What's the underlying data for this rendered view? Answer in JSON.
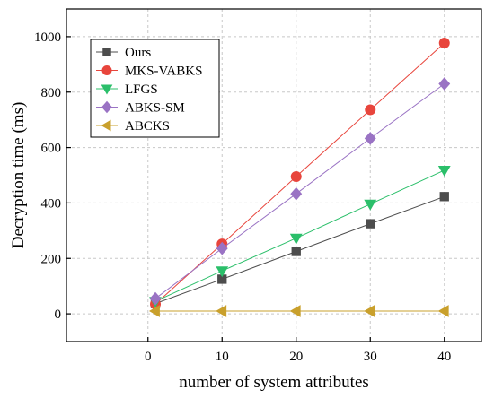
{
  "chart_data": {
    "type": "line",
    "title": "",
    "xlabel": "number of system attributes",
    "ylabel": "Decryption  time (ms)",
    "xlim": [
      -11,
      45
    ],
    "ylim": [
      -100,
      1100
    ],
    "xticks": [
      0,
      10,
      20,
      30,
      40
    ],
    "yticks": [
      0,
      200,
      400,
      600,
      800,
      1000
    ],
    "grid": true,
    "legend_position": "top-left",
    "series": [
      {
        "name": "Ours",
        "color": "#4d4d4d",
        "marker": "square",
        "x": [
          1,
          10,
          20,
          30,
          40
        ],
        "y": [
          37,
          125,
          225,
          325,
          423
        ]
      },
      {
        "name": "MKS-VABKS",
        "color": "#e8453c",
        "marker": "circle",
        "x": [
          1,
          10,
          20,
          30,
          40
        ],
        "y": [
          35,
          252,
          495,
          736,
          977
        ]
      },
      {
        "name": "LFGS",
        "color": "#2bbf6a",
        "marker": "triangle-down",
        "x": [
          1,
          10,
          20,
          30,
          40
        ],
        "y": [
          45,
          155,
          273,
          396,
          518
        ]
      },
      {
        "name": "ABKS-SM",
        "color": "#9a73c4",
        "marker": "diamond",
        "x": [
          1,
          10,
          20,
          30,
          40
        ],
        "y": [
          55,
          236,
          433,
          633,
          830
        ]
      },
      {
        "name": "ABCKS",
        "color": "#c9a02c",
        "marker": "triangle-left",
        "x": [
          1,
          10,
          20,
          30,
          40
        ],
        "y": [
          10,
          10,
          10,
          10,
          10
        ]
      }
    ]
  }
}
